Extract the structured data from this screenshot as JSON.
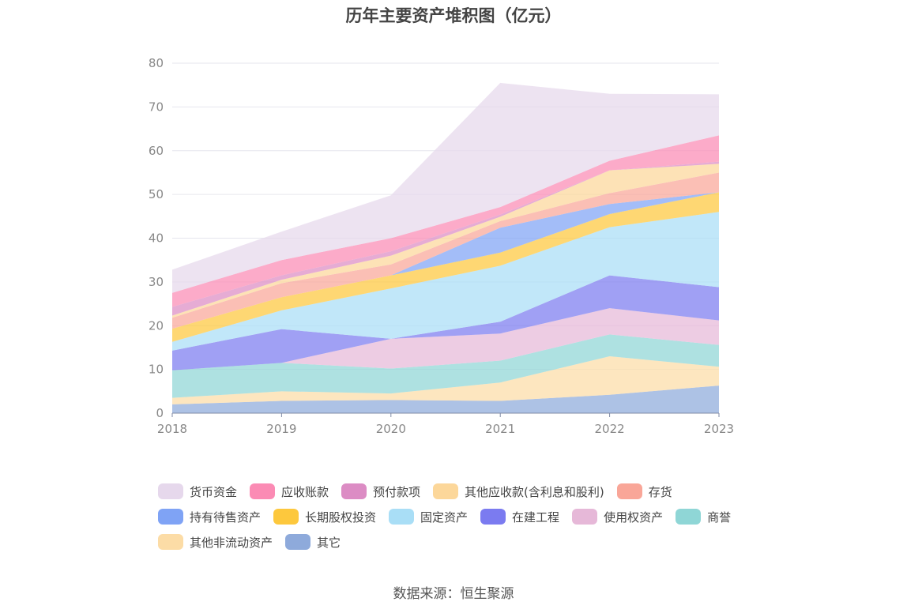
{
  "chart_data": {
    "type": "area",
    "stacked": true,
    "title": "历年主要资产堆积图（亿元）",
    "x": [
      "2018",
      "2019",
      "2020",
      "2021",
      "2022",
      "2023"
    ],
    "ylim": [
      0,
      80
    ],
    "yticks": [
      0,
      10,
      20,
      30,
      40,
      50,
      60,
      70,
      80
    ],
    "grid": true,
    "legend_position": "bottom",
    "series": [
      {
        "name": "其它",
        "color": "#8eaadb",
        "values": [
          2.0,
          2.8,
          3.0,
          2.8,
          4.2,
          6.3
        ]
      },
      {
        "name": "其他非流动资产",
        "color": "#fcdca6",
        "values": [
          1.5,
          2.2,
          1.5,
          4.2,
          8.8,
          4.3
        ]
      },
      {
        "name": "商誉",
        "color": "#8fd6d6",
        "values": [
          6.3,
          6.5,
          5.7,
          5.0,
          5.0,
          5.0
        ]
      },
      {
        "name": "使用权资产",
        "color": "#e6b8d8",
        "values": [
          0.0,
          0.0,
          6.8,
          6.2,
          6.0,
          5.6
        ]
      },
      {
        "name": "在建工程",
        "color": "#7b7bf0",
        "values": [
          4.5,
          7.7,
          0.0,
          2.7,
          7.5,
          7.6
        ]
      },
      {
        "name": "固定资产",
        "color": "#a9def6",
        "values": [
          2.0,
          4.3,
          11.5,
          12.8,
          11.0,
          17.2
        ]
      },
      {
        "name": "长期股权投资",
        "color": "#fdc83d",
        "values": [
          3.0,
          3.0,
          3.0,
          3.0,
          3.0,
          4.5
        ]
      },
      {
        "name": "持有待售资产",
        "color": "#7fa3f5",
        "values": [
          0.0,
          0.0,
          0.0,
          5.7,
          2.3,
          0.0
        ]
      },
      {
        "name": "存货",
        "color": "#f9a698",
        "values": [
          2.5,
          3.2,
          2.5,
          1.5,
          2.5,
          4.5
        ]
      },
      {
        "name": "其他应收款(含利息和股利)",
        "color": "#fcd79a",
        "values": [
          0.5,
          0.8,
          2.0,
          1.0,
          5.2,
          2.0
        ]
      },
      {
        "name": "预付款项",
        "color": "#dc8cc4",
        "values": [
          2.0,
          1.0,
          1.0,
          0.5,
          0.0,
          0.5
        ]
      },
      {
        "name": "应收账款",
        "color": "#fb8bb4",
        "values": [
          3.2,
          3.5,
          3.0,
          1.7,
          2.2,
          6.0
        ]
      },
      {
        "name": "货币资金",
        "color": "#e6d8ec",
        "values": [
          5.3,
          6.5,
          9.8,
          28.4,
          15.3,
          9.4
        ]
      }
    ],
    "legend_order": [
      "货币资金",
      "应收账款",
      "预付款项",
      "其他应收款(含利息和股利)",
      "存货",
      "持有待售资产",
      "长期股权投资",
      "固定资产",
      "在建工程",
      "使用权资产",
      "商誉",
      "其他非流动资产",
      "其它"
    ]
  },
  "source_text": "数据来源：恒生聚源"
}
